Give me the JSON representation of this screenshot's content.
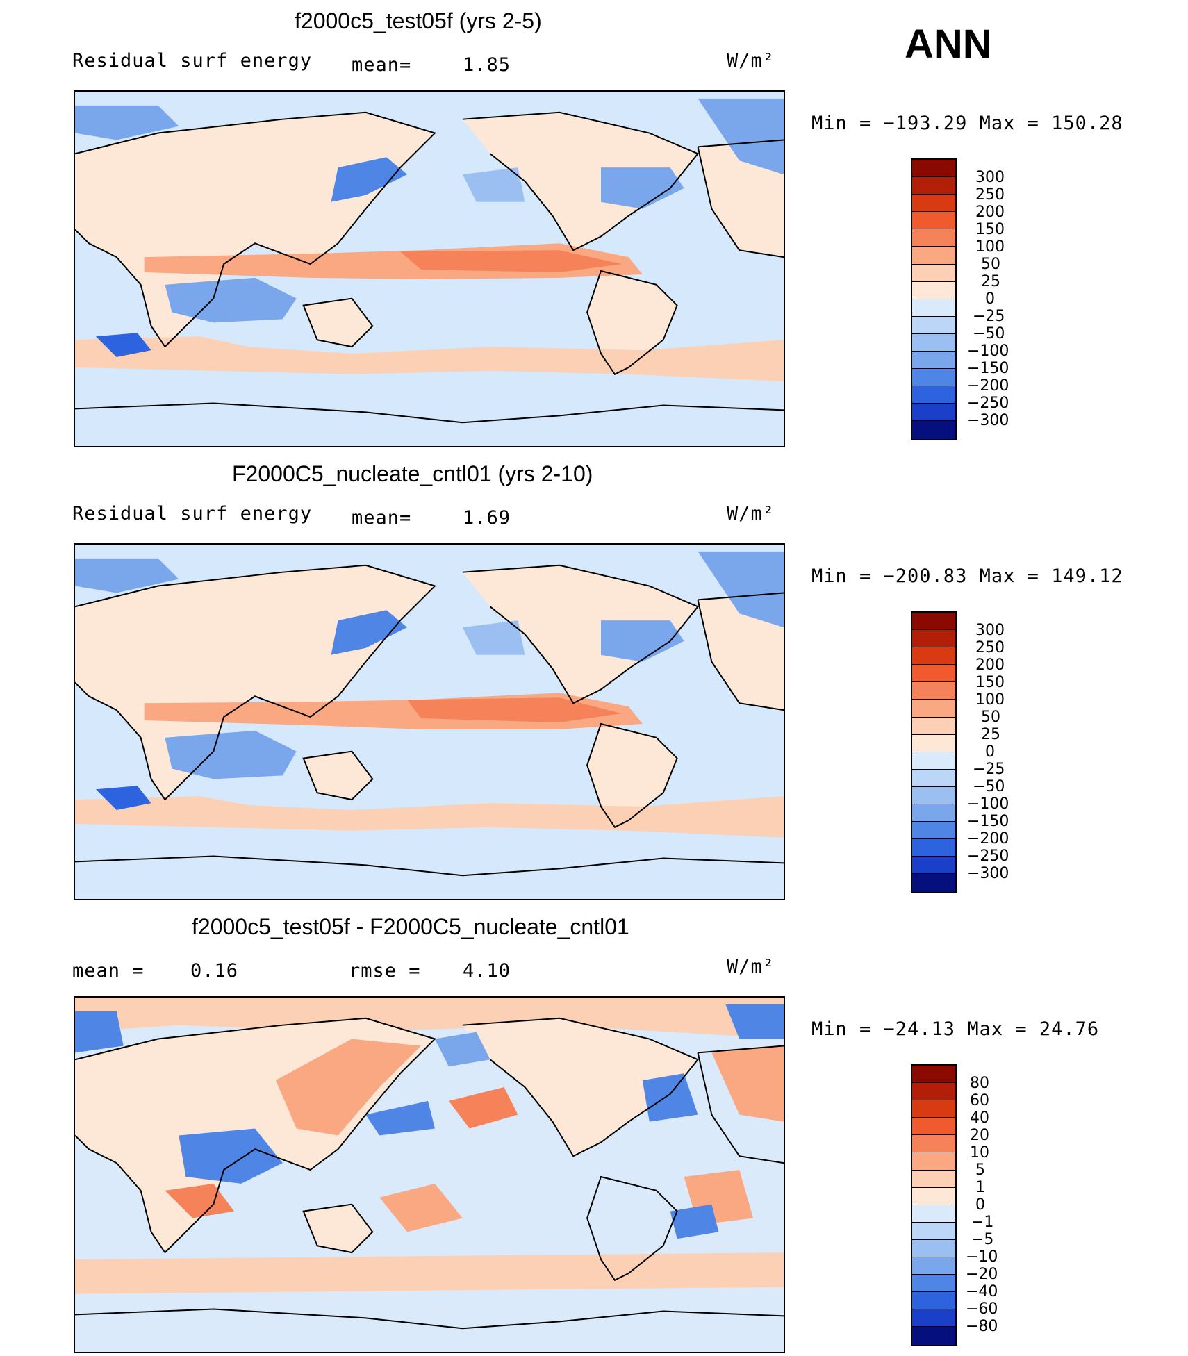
{
  "season": "ANN",
  "warm_colors": [
    "#fde8d8",
    "#fcd0b4",
    "#f9a882",
    "#f6825a",
    "#f15a2e",
    "#d83a12",
    "#b31e06",
    "#8b0a00"
  ],
  "cool_colors": [
    "#dbeafb",
    "#bcd6f7",
    "#9cbff2",
    "#7aa6ec",
    "#4f86e6",
    "#2e63e0",
    "#1a3fc9",
    "#0b22a0",
    "#050f7e"
  ],
  "panels": [
    {
      "title": "f2000c5_test05f (yrs 2-5)",
      "field": "Residual surf energy",
      "stat1_label": "mean=",
      "stat1_value": "1.85",
      "units": "W/m²",
      "minmax_text": "Min  =  −193.29  Max  =  150.28",
      "colorbar_levels": [
        "300",
        "250",
        "200",
        "150",
        "100",
        "50",
        "25",
        "0",
        "−25",
        "−50",
        "−100",
        "−150",
        "−200",
        "−250",
        "−300"
      ]
    },
    {
      "title": "F2000C5_nucleate_cntl01 (yrs 2-10)",
      "field": "Residual surf energy",
      "stat1_label": "mean=",
      "stat1_value": "1.69",
      "units": "W/m²",
      "minmax_text": "Min  =  −200.83  Max  =  149.12",
      "colorbar_levels": [
        "300",
        "250",
        "200",
        "150",
        "100",
        "50",
        "25",
        "0",
        "−25",
        "−50",
        "−100",
        "−150",
        "−200",
        "−250",
        "−300"
      ]
    },
    {
      "title": "f2000c5_test05f - F2000C5_nucleate_cntl01",
      "stat1_label": "mean  =",
      "stat1_value": "0.16",
      "stat2_label": "rmse  =",
      "stat2_value": "4.10",
      "units": "W/m²",
      "minmax_text": "Min  =  −24.13  Max  =   24.76",
      "colorbar_levels": [
        "80",
        "60",
        "40",
        "20",
        "10",
        "5",
        "1",
        "0",
        "−1",
        "−5",
        "−10",
        "−20",
        "−40",
        "−60",
        "−80"
      ]
    }
  ]
}
